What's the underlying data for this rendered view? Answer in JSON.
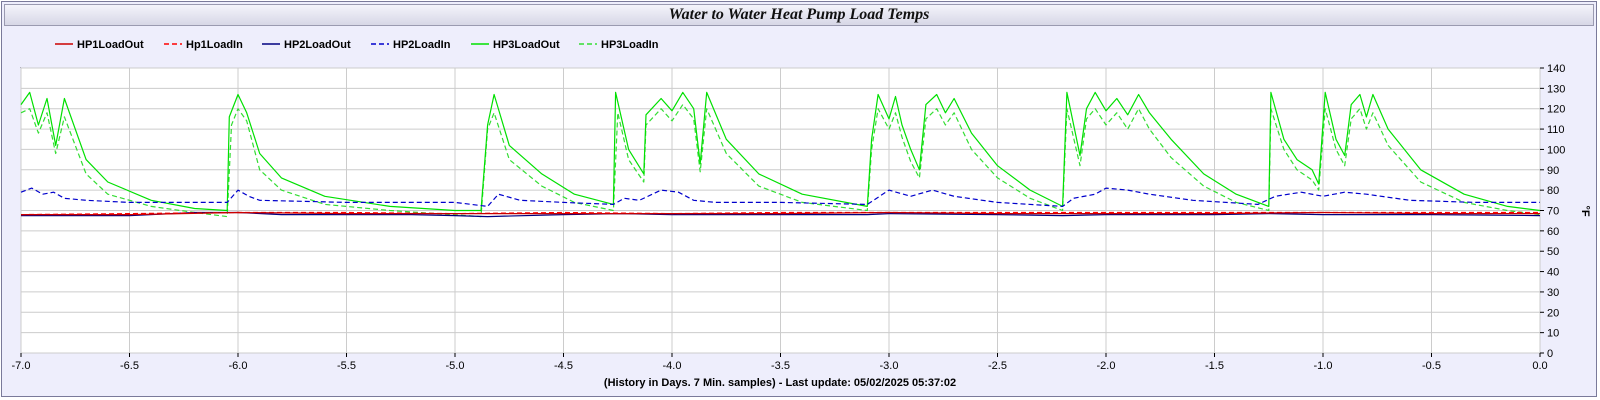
{
  "chart_data": {
    "type": "line",
    "title": "Water to Water Heat Pump Load Temps",
    "xlabel": "(History in Days. 7 Min. samples) - Last update: 05/02/2025 05:37:02",
    "ylabel": "°F",
    "xlim": [
      -7.0,
      0.0
    ],
    "ylim": [
      0,
      140
    ],
    "x_ticks": [
      "-7.0",
      "-6.5",
      "-6.0",
      "-5.5",
      "-5.0",
      "-4.5",
      "-4.0",
      "-3.5",
      "-3.0",
      "-2.5",
      "-2.0",
      "-1.5",
      "-1.0",
      "-0.5",
      "0.0"
    ],
    "y_ticks": [
      "0",
      "10",
      "20",
      "30",
      "40",
      "50",
      "60",
      "70",
      "80",
      "90",
      "100",
      "110",
      "120",
      "130",
      "140"
    ],
    "grid": true,
    "legend_position": "top",
    "series": [
      {
        "name": "HP1LoadOut",
        "color": "#cc0000",
        "dash": "solid",
        "points": [
          [
            -7.0,
            68
          ],
          [
            -6.5,
            68
          ],
          [
            -6.0,
            69
          ],
          [
            -5.5,
            68.5
          ],
          [
            -5.0,
            68.5
          ],
          [
            -4.5,
            68.5
          ],
          [
            -4.0,
            68.5
          ],
          [
            -3.5,
            68.5
          ],
          [
            -3.0,
            69
          ],
          [
            -2.5,
            68.5
          ],
          [
            -2.0,
            68.5
          ],
          [
            -1.5,
            68.5
          ],
          [
            -1.0,
            69
          ],
          [
            -0.5,
            68.5
          ],
          [
            0.0,
            68.5
          ]
        ]
      },
      {
        "name": "Hp1LoadIn",
        "color": "#ff0000",
        "dash": "dashed",
        "points": [
          [
            -7.0,
            68
          ],
          [
            -6.5,
            68.5
          ],
          [
            -6.0,
            69
          ],
          [
            -5.5,
            69
          ],
          [
            -5.0,
            68.5
          ],
          [
            -4.5,
            69
          ],
          [
            -4.0,
            68.5
          ],
          [
            -3.5,
            69
          ],
          [
            -3.0,
            69
          ],
          [
            -2.5,
            69
          ],
          [
            -2.0,
            69
          ],
          [
            -1.5,
            69
          ],
          [
            -1.0,
            69
          ],
          [
            -0.5,
            69
          ],
          [
            0.0,
            69
          ]
        ]
      },
      {
        "name": "HP2LoadOut",
        "color": "#000080",
        "dash": "solid",
        "points": [
          [
            -7.0,
            67.5
          ],
          [
            -6.5,
            67.5
          ],
          [
            -6.2,
            69
          ],
          [
            -6.0,
            69
          ],
          [
            -5.8,
            68
          ],
          [
            -5.5,
            68
          ],
          [
            -5.2,
            68
          ],
          [
            -5.0,
            67.5
          ],
          [
            -4.85,
            67
          ],
          [
            -4.5,
            68
          ],
          [
            -4.25,
            68.5
          ],
          [
            -4.0,
            68
          ],
          [
            -3.5,
            68
          ],
          [
            -3.1,
            68
          ],
          [
            -3.0,
            68.5
          ],
          [
            -2.5,
            68
          ],
          [
            -2.2,
            67.5
          ],
          [
            -2.0,
            68
          ],
          [
            -1.5,
            68
          ],
          [
            -1.25,
            68.5
          ],
          [
            -1.0,
            68
          ],
          [
            -0.5,
            68
          ],
          [
            0.0,
            67.5
          ]
        ]
      },
      {
        "name": "HP2LoadIn",
        "color": "#0000cc",
        "dash": "dashed",
        "points": [
          [
            -7.0,
            79
          ],
          [
            -6.95,
            81
          ],
          [
            -6.9,
            78
          ],
          [
            -6.85,
            79
          ],
          [
            -6.8,
            76
          ],
          [
            -6.7,
            75
          ],
          [
            -6.5,
            74
          ],
          [
            -6.3,
            74
          ],
          [
            -6.05,
            74
          ],
          [
            -6.0,
            80
          ],
          [
            -5.95,
            77
          ],
          [
            -5.9,
            75
          ],
          [
            -5.5,
            74
          ],
          [
            -5.0,
            74
          ],
          [
            -4.85,
            72
          ],
          [
            -4.8,
            78
          ],
          [
            -4.7,
            75
          ],
          [
            -4.5,
            74
          ],
          [
            -4.27,
            73
          ],
          [
            -4.22,
            76
          ],
          [
            -4.15,
            75
          ],
          [
            -4.05,
            80
          ],
          [
            -3.97,
            79
          ],
          [
            -3.9,
            75
          ],
          [
            -3.8,
            74
          ],
          [
            -3.5,
            74
          ],
          [
            -3.1,
            73
          ],
          [
            -3.0,
            80
          ],
          [
            -2.9,
            77
          ],
          [
            -2.8,
            80
          ],
          [
            -2.7,
            77
          ],
          [
            -2.5,
            74
          ],
          [
            -2.2,
            72
          ],
          [
            -2.15,
            76
          ],
          [
            -2.05,
            78
          ],
          [
            -2.0,
            81
          ],
          [
            -1.9,
            80
          ],
          [
            -1.8,
            78
          ],
          [
            -1.6,
            75
          ],
          [
            -1.3,
            73
          ],
          [
            -1.22,
            77
          ],
          [
            -1.1,
            79
          ],
          [
            -1.0,
            77
          ],
          [
            -0.9,
            79
          ],
          [
            -0.8,
            78
          ],
          [
            -0.6,
            75
          ],
          [
            -0.3,
            74
          ],
          [
            0.0,
            74
          ]
        ]
      },
      {
        "name": "HP3LoadOut",
        "color": "#00e000",
        "dash": "solid",
        "points": [
          [
            -7.0,
            122
          ],
          [
            -6.96,
            128
          ],
          [
            -6.92,
            112
          ],
          [
            -6.88,
            125
          ],
          [
            -6.84,
            102
          ],
          [
            -6.8,
            125
          ],
          [
            -6.7,
            95
          ],
          [
            -6.6,
            84
          ],
          [
            -6.4,
            75
          ],
          [
            -6.2,
            71
          ],
          [
            -6.05,
            70
          ],
          [
            -6.04,
            116
          ],
          [
            -6.0,
            127
          ],
          [
            -5.96,
            118
          ],
          [
            -5.9,
            98
          ],
          [
            -5.8,
            86
          ],
          [
            -5.6,
            77
          ],
          [
            -5.3,
            72
          ],
          [
            -5.0,
            70
          ],
          [
            -4.88,
            70
          ],
          [
            -4.85,
            112
          ],
          [
            -4.82,
            127
          ],
          [
            -4.75,
            102
          ],
          [
            -4.6,
            88
          ],
          [
            -4.45,
            78
          ],
          [
            -4.27,
            73
          ],
          [
            -4.26,
            128
          ],
          [
            -4.2,
            100
          ],
          [
            -4.13,
            88
          ],
          [
            -4.12,
            117
          ],
          [
            -4.05,
            125
          ],
          [
            -4.0,
            119
          ],
          [
            -3.95,
            128
          ],
          [
            -3.9,
            120
          ],
          [
            -3.87,
            93
          ],
          [
            -3.84,
            128
          ],
          [
            -3.75,
            105
          ],
          [
            -3.6,
            88
          ],
          [
            -3.4,
            78
          ],
          [
            -3.1,
            72
          ],
          [
            -3.08,
            105
          ],
          [
            -3.05,
            127
          ],
          [
            -3.0,
            115
          ],
          [
            -2.97,
            126
          ],
          [
            -2.94,
            112
          ],
          [
            -2.9,
            100
          ],
          [
            -2.86,
            90
          ],
          [
            -2.83,
            122
          ],
          [
            -2.78,
            127
          ],
          [
            -2.74,
            118
          ],
          [
            -2.7,
            125
          ],
          [
            -2.62,
            108
          ],
          [
            -2.5,
            92
          ],
          [
            -2.35,
            80
          ],
          [
            -2.2,
            72
          ],
          [
            -2.18,
            128
          ],
          [
            -2.12,
            97
          ],
          [
            -2.09,
            120
          ],
          [
            -2.05,
            128
          ],
          [
            -2.0,
            119
          ],
          [
            -1.95,
            125
          ],
          [
            -1.9,
            117
          ],
          [
            -1.85,
            127
          ],
          [
            -1.8,
            118
          ],
          [
            -1.7,
            105
          ],
          [
            -1.55,
            88
          ],
          [
            -1.4,
            78
          ],
          [
            -1.25,
            72
          ],
          [
            -1.24,
            128
          ],
          [
            -1.18,
            105
          ],
          [
            -1.12,
            95
          ],
          [
            -1.05,
            90
          ],
          [
            -1.02,
            83
          ],
          [
            -0.99,
            128
          ],
          [
            -0.94,
            105
          ],
          [
            -0.9,
            97
          ],
          [
            -0.87,
            122
          ],
          [
            -0.83,
            127
          ],
          [
            -0.8,
            116
          ],
          [
            -0.77,
            127
          ],
          [
            -0.7,
            110
          ],
          [
            -0.55,
            90
          ],
          [
            -0.35,
            78
          ],
          [
            -0.15,
            72
          ],
          [
            0.0,
            70
          ]
        ]
      },
      {
        "name": "HP3LoadIn",
        "color": "#33dd33",
        "dash": "dashed",
        "points": [
          [
            -7.0,
            118
          ],
          [
            -6.96,
            120
          ],
          [
            -6.92,
            108
          ],
          [
            -6.88,
            118
          ],
          [
            -6.84,
            98
          ],
          [
            -6.8,
            116
          ],
          [
            -6.7,
            88
          ],
          [
            -6.6,
            78
          ],
          [
            -6.4,
            72
          ],
          [
            -6.2,
            69
          ],
          [
            -6.05,
            67
          ],
          [
            -6.03,
            112
          ],
          [
            -6.0,
            120
          ],
          [
            -5.96,
            114
          ],
          [
            -5.9,
            90
          ],
          [
            -5.8,
            80
          ],
          [
            -5.6,
            73
          ],
          [
            -5.3,
            70
          ],
          [
            -4.88,
            67
          ],
          [
            -4.85,
            110
          ],
          [
            -4.82,
            118
          ],
          [
            -4.75,
            95
          ],
          [
            -4.6,
            82
          ],
          [
            -4.45,
            74
          ],
          [
            -4.27,
            70
          ],
          [
            -4.25,
            118
          ],
          [
            -4.2,
            95
          ],
          [
            -4.13,
            84
          ],
          [
            -4.12,
            112
          ],
          [
            -4.05,
            120
          ],
          [
            -4.0,
            114
          ],
          [
            -3.95,
            122
          ],
          [
            -3.9,
            115
          ],
          [
            -3.87,
            89
          ],
          [
            -3.84,
            120
          ],
          [
            -3.75,
            98
          ],
          [
            -3.6,
            82
          ],
          [
            -3.4,
            74
          ],
          [
            -3.1,
            70
          ],
          [
            -3.08,
            100
          ],
          [
            -3.05,
            120
          ],
          [
            -3.0,
            110
          ],
          [
            -2.97,
            118
          ],
          [
            -2.94,
            106
          ],
          [
            -2.9,
            94
          ],
          [
            -2.86,
            86
          ],
          [
            -2.83,
            115
          ],
          [
            -2.78,
            120
          ],
          [
            -2.74,
            112
          ],
          [
            -2.7,
            118
          ],
          [
            -2.62,
            100
          ],
          [
            -2.5,
            86
          ],
          [
            -2.35,
            76
          ],
          [
            -2.2,
            70
          ],
          [
            -2.18,
            120
          ],
          [
            -2.12,
            92
          ],
          [
            -2.09,
            115
          ],
          [
            -2.05,
            120
          ],
          [
            -2.0,
            112
          ],
          [
            -1.95,
            118
          ],
          [
            -1.9,
            110
          ],
          [
            -1.85,
            120
          ],
          [
            -1.8,
            110
          ],
          [
            -1.7,
            96
          ],
          [
            -1.55,
            82
          ],
          [
            -1.4,
            74
          ],
          [
            -1.25,
            70
          ],
          [
            -1.24,
            120
          ],
          [
            -1.18,
            100
          ],
          [
            -1.12,
            90
          ],
          [
            -1.05,
            85
          ],
          [
            -1.02,
            80
          ],
          [
            -0.99,
            120
          ],
          [
            -0.94,
            100
          ],
          [
            -0.9,
            92
          ],
          [
            -0.87,
            115
          ],
          [
            -0.83,
            120
          ],
          [
            -0.8,
            110
          ],
          [
            -0.77,
            118
          ],
          [
            -0.7,
            102
          ],
          [
            -0.55,
            84
          ],
          [
            -0.35,
            74
          ],
          [
            -0.15,
            70
          ],
          [
            0.0,
            68
          ]
        ]
      }
    ]
  }
}
